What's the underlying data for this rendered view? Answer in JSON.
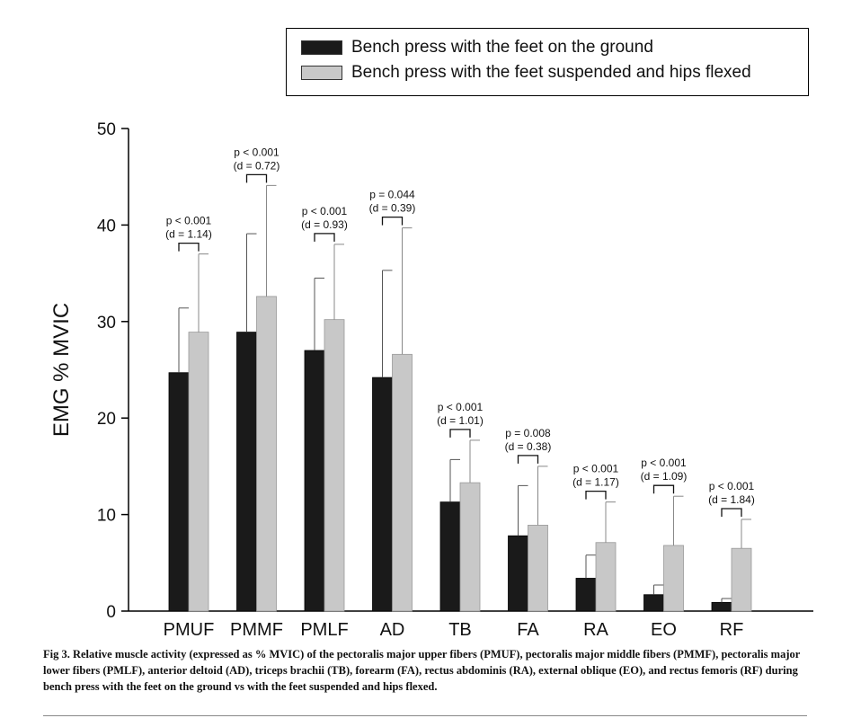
{
  "chart_data": {
    "type": "bar",
    "ylabel": "EMG % MVIC",
    "ylim": [
      0,
      50
    ],
    "yticks": [
      0,
      10,
      20,
      30,
      40,
      50
    ],
    "categories": [
      "PMUF",
      "PMMF",
      "PMLF",
      "AD",
      "TB",
      "FA",
      "RA",
      "EO",
      "RF"
    ],
    "series": [
      {
        "name": "Bench press with the feet on the ground",
        "color": "#1a1a1a",
        "values": [
          24.7,
          28.9,
          27.0,
          24.2,
          11.3,
          7.8,
          3.4,
          1.7,
          0.9
        ],
        "error": [
          6.7,
          10.2,
          7.5,
          11.1,
          4.4,
          5.2,
          2.4,
          1.0,
          0.4
        ]
      },
      {
        "name": "Bench press with the feet suspended and hips flexed",
        "color": "#c8c8c8",
        "values": [
          28.9,
          32.6,
          30.2,
          26.6,
          13.3,
          8.9,
          7.1,
          6.8,
          6.5
        ],
        "error": [
          8.1,
          11.5,
          7.8,
          13.1,
          4.4,
          6.1,
          4.2,
          5.1,
          3.0
        ]
      }
    ],
    "annotations": [
      {
        "p": "p < 0.001",
        "d": "(d  = 1.14)"
      },
      {
        "p": "p < 0.001",
        "d": "(d = 0.72)"
      },
      {
        "p": "p < 0.001",
        "d": "(d = 0.93)"
      },
      {
        "p": "p = 0.044",
        "d": "(d = 0.39)"
      },
      {
        "p": "p < 0.001",
        "d": "(d = 1.01)"
      },
      {
        "p": "p = 0.008",
        "d": "(d = 0.38)"
      },
      {
        "p": "p < 0.001",
        "d": "(d = 1.17)"
      },
      {
        "p": "p < 0.001",
        "d": "(d = 1.09)"
      },
      {
        "p": "p < 0.001",
        "d": "(d = 1.84)"
      }
    ],
    "legend_position": "top-right"
  },
  "caption": {
    "label": "Fig 3.",
    "text": "Relative muscle activity (expressed as % MVIC) of the pectoralis major upper fibers (PMUF), pectoralis major middle fibers (PMMF), pectoralis major lower fibers (PMLF), anterior deltoid (AD), triceps brachii (TB), forearm (FA), rectus abdominis (RA), external oblique (EO), and rectus femoris (RF) during bench press with the feet on the ground vs with the feet suspended and hips flexed."
  }
}
